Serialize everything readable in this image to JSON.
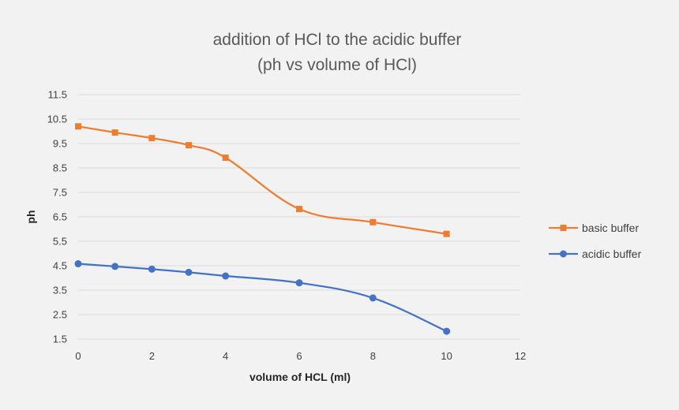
{
  "chart_data": {
    "type": "line",
    "title": "addition of HCl to the acidic buffer",
    "subtitle": "(ph vs volume of HCl)",
    "xlabel": "volume of HCL (ml)",
    "ylabel": "ph",
    "xlim": [
      0,
      12
    ],
    "ylim": [
      1.5,
      11.5
    ],
    "x_ticks": [
      0,
      2,
      4,
      6,
      8,
      10,
      12
    ],
    "y_ticks": [
      "1.5",
      "2.5",
      "3.5",
      "4.5",
      "5.5",
      "6.5",
      "7.5",
      "8.5",
      "9.5",
      "10.5",
      "11.5"
    ],
    "grid": true,
    "legend_position": "right",
    "series": [
      {
        "name": "basic buffer",
        "color": "#ed7d31",
        "marker": "square",
        "x": [
          0,
          1,
          2,
          3,
          4,
          6,
          8,
          10
        ],
        "y": [
          10.2,
          9.95,
          9.72,
          9.43,
          8.92,
          6.82,
          6.28,
          5.8
        ]
      },
      {
        "name": "acidic buffer",
        "color": "#4472c4",
        "marker": "circle",
        "x": [
          0,
          1,
          2,
          3,
          4,
          6,
          8,
          10
        ],
        "y": [
          4.58,
          4.47,
          4.36,
          4.23,
          4.08,
          3.8,
          3.18,
          1.82
        ]
      }
    ]
  }
}
